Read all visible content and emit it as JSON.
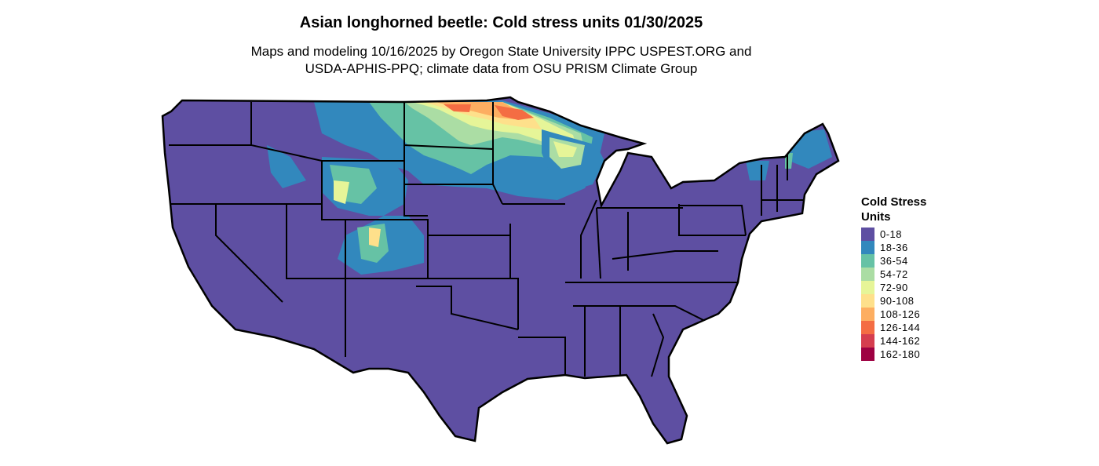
{
  "title": "Asian longhorned beetle: Cold stress units 01/30/2025",
  "subtitle_line1": "Maps and modeling 10/16/2025 by Oregon State University IPPC USPEST.ORG and",
  "subtitle_line2": "USDA-APHIS-PPQ; climate data from OSU PRISM Climate Group",
  "legend": {
    "title": "Cold Stress Units",
    "classes": [
      {
        "label": "0-18",
        "color": "#5e4fa2"
      },
      {
        "label": "18-36",
        "color": "#3288bd"
      },
      {
        "label": "36-54",
        "color": "#66c2a5"
      },
      {
        "label": "54-72",
        "color": "#abdda4"
      },
      {
        "label": "72-90",
        "color": "#e6f598"
      },
      {
        "label": "90-108",
        "color": "#fee08b"
      },
      {
        "label": "108-126",
        "color": "#fdae61"
      },
      {
        "label": "126-144",
        "color": "#f46d43"
      },
      {
        "label": "144-162",
        "color": "#d53e4f"
      },
      {
        "label": "162-180",
        "color": "#9e0142"
      }
    ]
  },
  "map": {
    "region": "Contiguous United States",
    "base_class": "0-18",
    "hotspots": [
      "North Dakota",
      "Minnesota",
      "Wyoming",
      "Colorado",
      "Montana",
      "Northern Maine"
    ]
  }
}
